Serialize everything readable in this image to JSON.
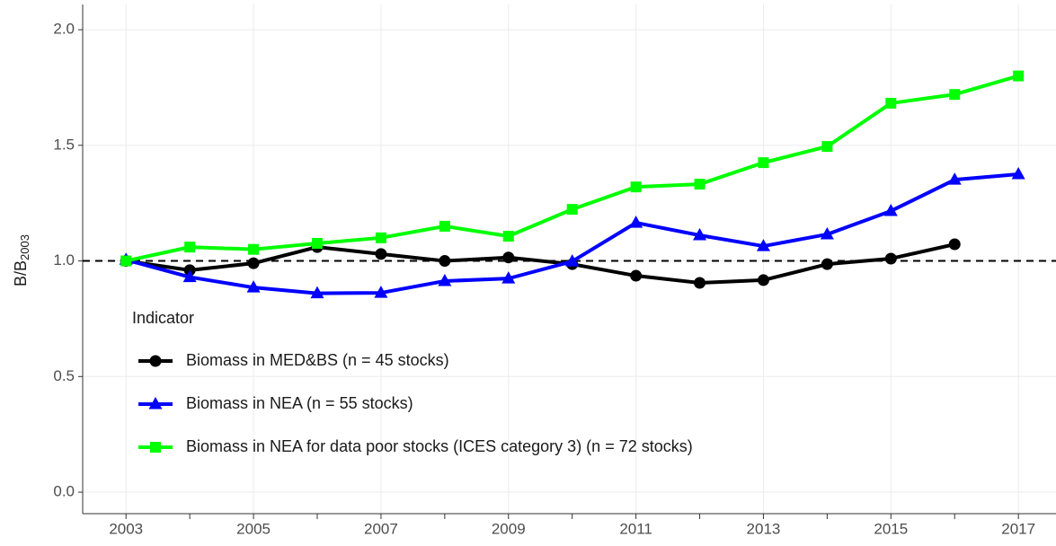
{
  "chart_data": {
    "type": "line",
    "ylabel": "B/B",
    "ylabel_subscript": "2003",
    "x": [
      2003,
      2004,
      2005,
      2006,
      2007,
      2008,
      2009,
      2010,
      2011,
      2012,
      2013,
      2014,
      2015,
      2016,
      2017
    ],
    "series": [
      {
        "name": "Biomass in MED&BS (n = 45 stocks)",
        "color": "#000000",
        "marker": "circle",
        "values": [
          1.0,
          0.96,
          0.99,
          1.06,
          1.03,
          1.0,
          1.015,
          0.986,
          0.936,
          0.905,
          0.917,
          0.986,
          1.01,
          1.072,
          null
        ]
      },
      {
        "name": "Biomass in NEA (n = 55 stocks)",
        "color": "#0000ff",
        "marker": "triangle",
        "values": [
          1.005,
          0.93,
          0.885,
          0.86,
          0.862,
          0.913,
          0.924,
          0.998,
          1.165,
          1.111,
          1.064,
          1.115,
          1.216,
          1.351,
          1.375
        ]
      },
      {
        "name": "Biomass in NEA for data poor stocks (ICES category 3) (n = 72 stocks)",
        "color": "#00ff00",
        "marker": "square",
        "values": [
          1.0,
          1.06,
          1.05,
          1.076,
          1.1,
          1.15,
          1.107,
          1.223,
          1.32,
          1.332,
          1.425,
          1.495,
          1.682,
          1.72,
          1.8
        ]
      }
    ],
    "legend_title": "Indicator",
    "legend": "bottom-left",
    "hline": 1,
    "xlim": [
      2002.32,
      2017.59
    ],
    "xticks": [
      2003,
      2005,
      2007,
      2009,
      2011,
      2013,
      2015,
      2017
    ],
    "xminorticks": [
      2004,
      2006,
      2008,
      2010,
      2012,
      2014,
      2016
    ],
    "ylim": [
      -0.093,
      2.109
    ],
    "yticks": [
      {
        "value": 0,
        "label": "0.0"
      },
      {
        "value": 0.5,
        "label": "0.5"
      },
      {
        "value": 1,
        "label": "1.0"
      },
      {
        "value": 1.5,
        "label": "1.5"
      },
      {
        "value": 2,
        "label": "2.0"
      }
    ],
    "grid": true
  }
}
